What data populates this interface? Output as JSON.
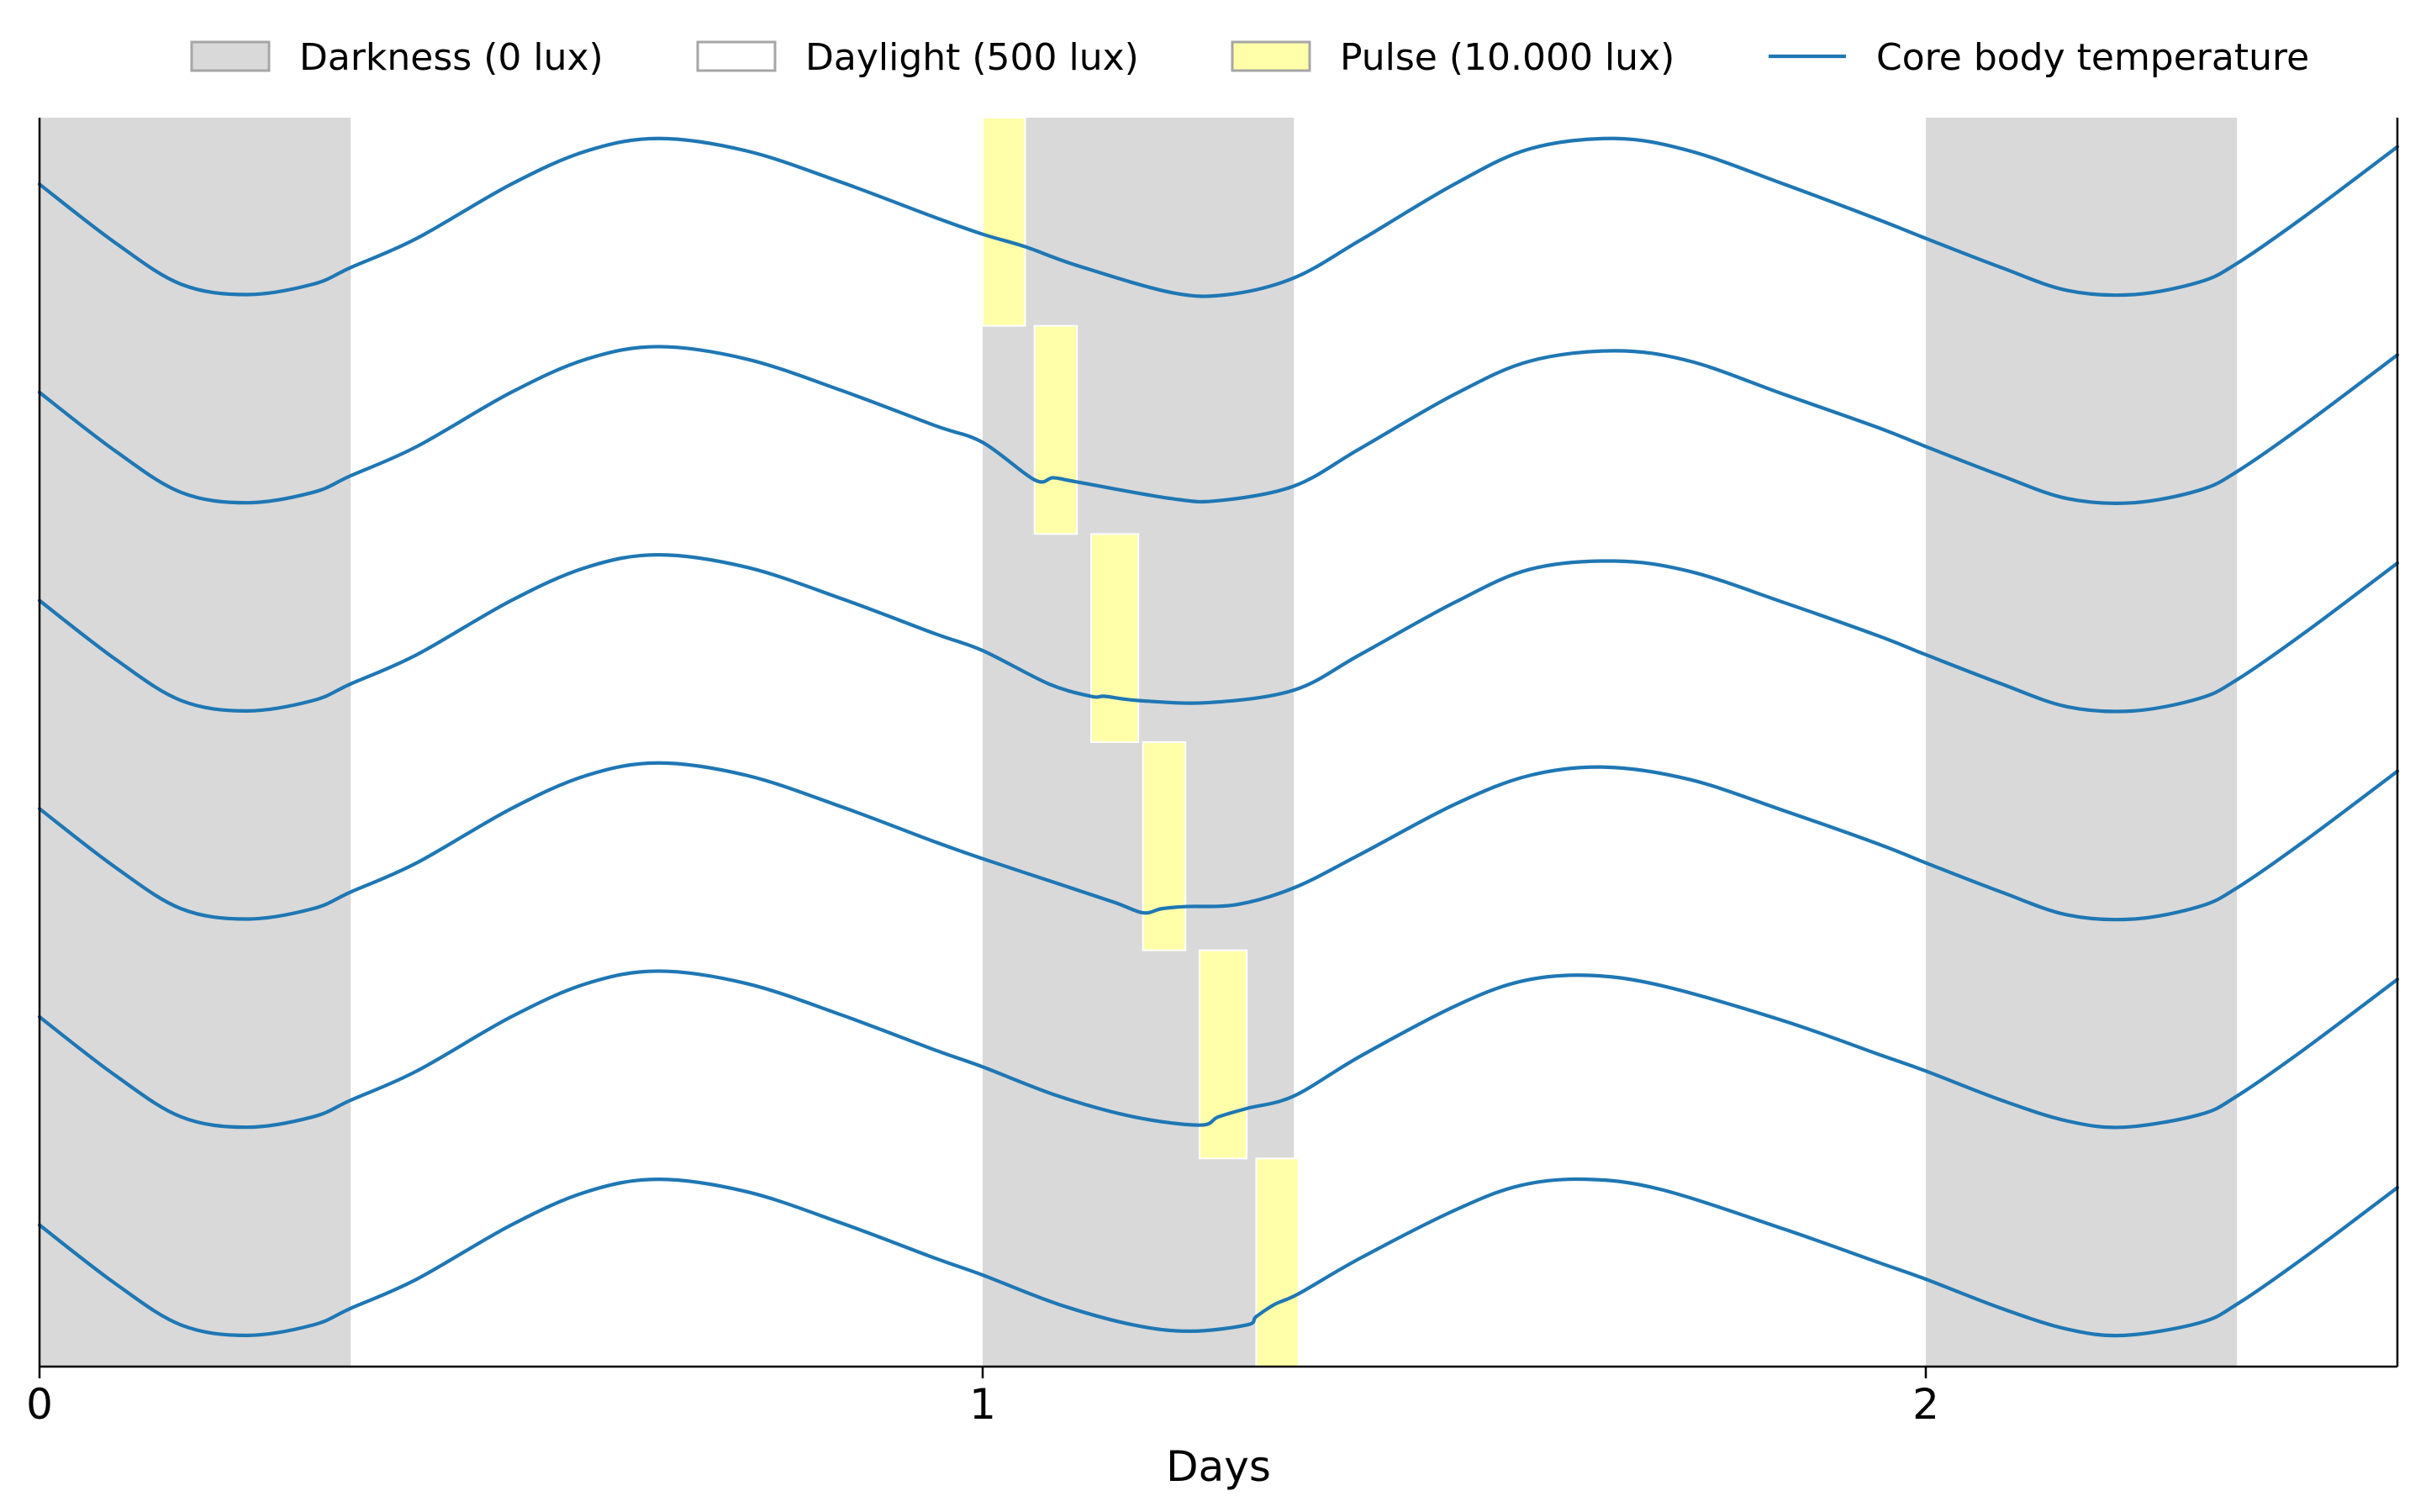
{
  "chart_data": {
    "type": "line",
    "title": "",
    "xlabel": "Days",
    "ylabel": "",
    "xlim": [
      0,
      2.5
    ],
    "xticks": [
      0,
      1,
      2
    ],
    "xtick_labels": [
      "0",
      "1",
      "2"
    ],
    "grid": false,
    "legend_position": "top",
    "colors": {
      "darkness_fill": "#d9d9d9",
      "darkness_edge": "#a6a6a6",
      "daylight_fill": "#ffffff",
      "daylight_edge": "#a6a6a6",
      "pulse_fill": "#ffffaa",
      "pulse_edge": "#a6a6a6",
      "temperature_line": "#1f77b4",
      "axis": "#000000"
    },
    "legend": [
      {
        "key": "darkness",
        "label": "Darkness (0 lux)",
        "kind": "patch"
      },
      {
        "key": "daylight",
        "label": "Daylight (500 lux)",
        "kind": "patch"
      },
      {
        "key": "pulse",
        "label": "Pulse (10.000 lux)",
        "kind": "patch"
      },
      {
        "key": "temperature",
        "label": "Core body temperature",
        "kind": "line"
      }
    ],
    "darkness_intervals": [
      [
        0,
        0.33
      ],
      [
        1.0,
        1.33
      ],
      [
        2.0,
        2.33
      ]
    ],
    "rows": [
      {
        "name": "",
        "pulse": [
          1.0,
          1.045
        ]
      },
      {
        "name": "",
        "pulse": [
          1.055,
          1.1
        ]
      },
      {
        "name": "",
        "pulse": [
          1.115,
          1.165
        ]
      },
      {
        "name": "",
        "pulse": [
          1.17,
          1.215
        ]
      },
      {
        "name": "",
        "pulse": [
          1.23,
          1.28
        ]
      },
      {
        "name": "",
        "pulse": [
          1.29,
          1.335
        ]
      }
    ],
    "temperature_series": [
      {
        "row": 0,
        "points": [
          [
            0,
            0.68
          ],
          [
            0.08,
            0.4
          ],
          [
            0.15,
            0.2
          ],
          [
            0.22,
            0.15
          ],
          [
            0.29,
            0.2
          ],
          [
            0.33,
            0.28
          ],
          [
            0.4,
            0.42
          ],
          [
            0.5,
            0.68
          ],
          [
            0.58,
            0.84
          ],
          [
            0.656,
            0.9
          ],
          [
            0.75,
            0.84
          ],
          [
            0.85,
            0.69
          ],
          [
            0.95,
            0.52
          ],
          [
            1.0,
            0.44
          ],
          [
            1.045,
            0.38
          ],
          [
            1.1,
            0.29
          ],
          [
            1.2,
            0.16
          ],
          [
            1.26,
            0.15
          ],
          [
            1.33,
            0.23
          ],
          [
            1.4,
            0.41
          ],
          [
            1.5,
            0.68
          ],
          [
            1.58,
            0.85
          ],
          [
            1.67,
            0.9
          ],
          [
            1.75,
            0.84
          ],
          [
            1.85,
            0.68
          ],
          [
            1.95,
            0.51
          ],
          [
            2.0,
            0.42
          ],
          [
            2.08,
            0.28
          ],
          [
            2.15,
            0.17
          ],
          [
            2.22,
            0.15
          ],
          [
            2.29,
            0.21
          ],
          [
            2.33,
            0.3
          ],
          [
            2.4,
            0.52
          ],
          [
            2.5,
            0.86
          ]
        ]
      },
      {
        "row": 1,
        "points": [
          [
            0,
            0.68
          ],
          [
            0.08,
            0.4
          ],
          [
            0.15,
            0.2
          ],
          [
            0.22,
            0.15
          ],
          [
            0.29,
            0.2
          ],
          [
            0.33,
            0.28
          ],
          [
            0.4,
            0.42
          ],
          [
            0.5,
            0.68
          ],
          [
            0.58,
            0.84
          ],
          [
            0.656,
            0.9
          ],
          [
            0.75,
            0.84
          ],
          [
            0.85,
            0.69
          ],
          [
            0.95,
            0.52
          ],
          [
            1.0,
            0.44
          ],
          [
            1.055,
            0.26
          ],
          [
            1.075,
            0.27
          ],
          [
            1.1,
            0.25
          ],
          [
            1.2,
            0.17
          ],
          [
            1.25,
            0.16
          ],
          [
            1.33,
            0.23
          ],
          [
            1.4,
            0.41
          ],
          [
            1.5,
            0.67
          ],
          [
            1.58,
            0.83
          ],
          [
            1.67,
            0.88
          ],
          [
            1.75,
            0.83
          ],
          [
            1.85,
            0.67
          ],
          [
            1.95,
            0.51
          ],
          [
            2.0,
            0.42
          ],
          [
            2.08,
            0.28
          ],
          [
            2.15,
            0.17
          ],
          [
            2.22,
            0.15
          ],
          [
            2.29,
            0.21
          ],
          [
            2.33,
            0.3
          ],
          [
            2.4,
            0.52
          ],
          [
            2.5,
            0.86
          ]
        ]
      },
      {
        "row": 2,
        "points": [
          [
            0,
            0.68
          ],
          [
            0.08,
            0.4
          ],
          [
            0.15,
            0.2
          ],
          [
            0.22,
            0.15
          ],
          [
            0.29,
            0.2
          ],
          [
            0.33,
            0.28
          ],
          [
            0.4,
            0.42
          ],
          [
            0.5,
            0.68
          ],
          [
            0.58,
            0.84
          ],
          [
            0.656,
            0.9
          ],
          [
            0.75,
            0.84
          ],
          [
            0.85,
            0.69
          ],
          [
            0.95,
            0.52
          ],
          [
            1.0,
            0.44
          ],
          [
            1.07,
            0.28
          ],
          [
            1.115,
            0.22
          ],
          [
            1.13,
            0.22
          ],
          [
            1.165,
            0.2
          ],
          [
            1.24,
            0.19
          ],
          [
            1.33,
            0.25
          ],
          [
            1.4,
            0.42
          ],
          [
            1.5,
            0.67
          ],
          [
            1.58,
            0.83
          ],
          [
            1.67,
            0.87
          ],
          [
            1.75,
            0.82
          ],
          [
            1.85,
            0.67
          ],
          [
            1.95,
            0.51
          ],
          [
            2.0,
            0.42
          ],
          [
            2.08,
            0.28
          ],
          [
            2.15,
            0.17
          ],
          [
            2.22,
            0.15
          ],
          [
            2.29,
            0.21
          ],
          [
            2.33,
            0.3
          ],
          [
            2.4,
            0.52
          ],
          [
            2.5,
            0.86
          ]
        ]
      },
      {
        "row": 3,
        "points": [
          [
            0,
            0.68
          ],
          [
            0.08,
            0.4
          ],
          [
            0.15,
            0.2
          ],
          [
            0.22,
            0.15
          ],
          [
            0.29,
            0.2
          ],
          [
            0.33,
            0.28
          ],
          [
            0.4,
            0.42
          ],
          [
            0.5,
            0.68
          ],
          [
            0.58,
            0.84
          ],
          [
            0.656,
            0.9
          ],
          [
            0.75,
            0.84
          ],
          [
            0.85,
            0.69
          ],
          [
            0.95,
            0.52
          ],
          [
            1.0,
            0.44
          ],
          [
            1.08,
            0.32
          ],
          [
            1.14,
            0.23
          ],
          [
            1.17,
            0.18
          ],
          [
            1.19,
            0.2
          ],
          [
            1.215,
            0.21
          ],
          [
            1.27,
            0.22
          ],
          [
            1.33,
            0.3
          ],
          [
            1.4,
            0.46
          ],
          [
            1.5,
            0.7
          ],
          [
            1.58,
            0.84
          ],
          [
            1.66,
            0.88
          ],
          [
            1.75,
            0.82
          ],
          [
            1.85,
            0.67
          ],
          [
            1.95,
            0.51
          ],
          [
            2.0,
            0.42
          ],
          [
            2.08,
            0.28
          ],
          [
            2.15,
            0.17
          ],
          [
            2.22,
            0.15
          ],
          [
            2.29,
            0.21
          ],
          [
            2.33,
            0.3
          ],
          [
            2.4,
            0.52
          ],
          [
            2.5,
            0.86
          ]
        ]
      },
      {
        "row": 4,
        "points": [
          [
            0,
            0.68
          ],
          [
            0.08,
            0.4
          ],
          [
            0.15,
            0.2
          ],
          [
            0.22,
            0.15
          ],
          [
            0.29,
            0.2
          ],
          [
            0.33,
            0.28
          ],
          [
            0.4,
            0.42
          ],
          [
            0.5,
            0.68
          ],
          [
            0.58,
            0.84
          ],
          [
            0.656,
            0.9
          ],
          [
            0.75,
            0.84
          ],
          [
            0.85,
            0.69
          ],
          [
            0.95,
            0.52
          ],
          [
            1.0,
            0.44
          ],
          [
            1.08,
            0.3
          ],
          [
            1.16,
            0.2
          ],
          [
            1.23,
            0.16
          ],
          [
            1.25,
            0.2
          ],
          [
            1.28,
            0.24
          ],
          [
            1.33,
            0.3
          ],
          [
            1.4,
            0.49
          ],
          [
            1.5,
            0.73
          ],
          [
            1.57,
            0.85
          ],
          [
            1.64,
            0.88
          ],
          [
            1.72,
            0.83
          ],
          [
            1.85,
            0.66
          ],
          [
            1.95,
            0.5
          ],
          [
            2.0,
            0.42
          ],
          [
            2.08,
            0.28
          ],
          [
            2.15,
            0.18
          ],
          [
            2.21,
            0.15
          ],
          [
            2.29,
            0.21
          ],
          [
            2.33,
            0.3
          ],
          [
            2.4,
            0.52
          ],
          [
            2.5,
            0.86
          ]
        ]
      },
      {
        "row": 5,
        "points": [
          [
            0,
            0.68
          ],
          [
            0.08,
            0.4
          ],
          [
            0.15,
            0.2
          ],
          [
            0.22,
            0.15
          ],
          [
            0.29,
            0.2
          ],
          [
            0.33,
            0.28
          ],
          [
            0.4,
            0.42
          ],
          [
            0.5,
            0.68
          ],
          [
            0.58,
            0.84
          ],
          [
            0.656,
            0.9
          ],
          [
            0.75,
            0.84
          ],
          [
            0.85,
            0.69
          ],
          [
            0.95,
            0.52
          ],
          [
            1.0,
            0.44
          ],
          [
            1.08,
            0.3
          ],
          [
            1.16,
            0.2
          ],
          [
            1.22,
            0.17
          ],
          [
            1.28,
            0.2
          ],
          [
            1.29,
            0.24
          ],
          [
            1.31,
            0.3
          ],
          [
            1.335,
            0.35
          ],
          [
            1.4,
            0.52
          ],
          [
            1.5,
            0.75
          ],
          [
            1.57,
            0.87
          ],
          [
            1.64,
            0.9
          ],
          [
            1.72,
            0.85
          ],
          [
            1.85,
            0.66
          ],
          [
            1.95,
            0.5
          ],
          [
            2.0,
            0.42
          ],
          [
            2.08,
            0.28
          ],
          [
            2.15,
            0.18
          ],
          [
            2.21,
            0.15
          ],
          [
            2.29,
            0.21
          ],
          [
            2.33,
            0.3
          ],
          [
            2.4,
            0.52
          ],
          [
            2.5,
            0.86
          ]
        ]
      }
    ]
  }
}
